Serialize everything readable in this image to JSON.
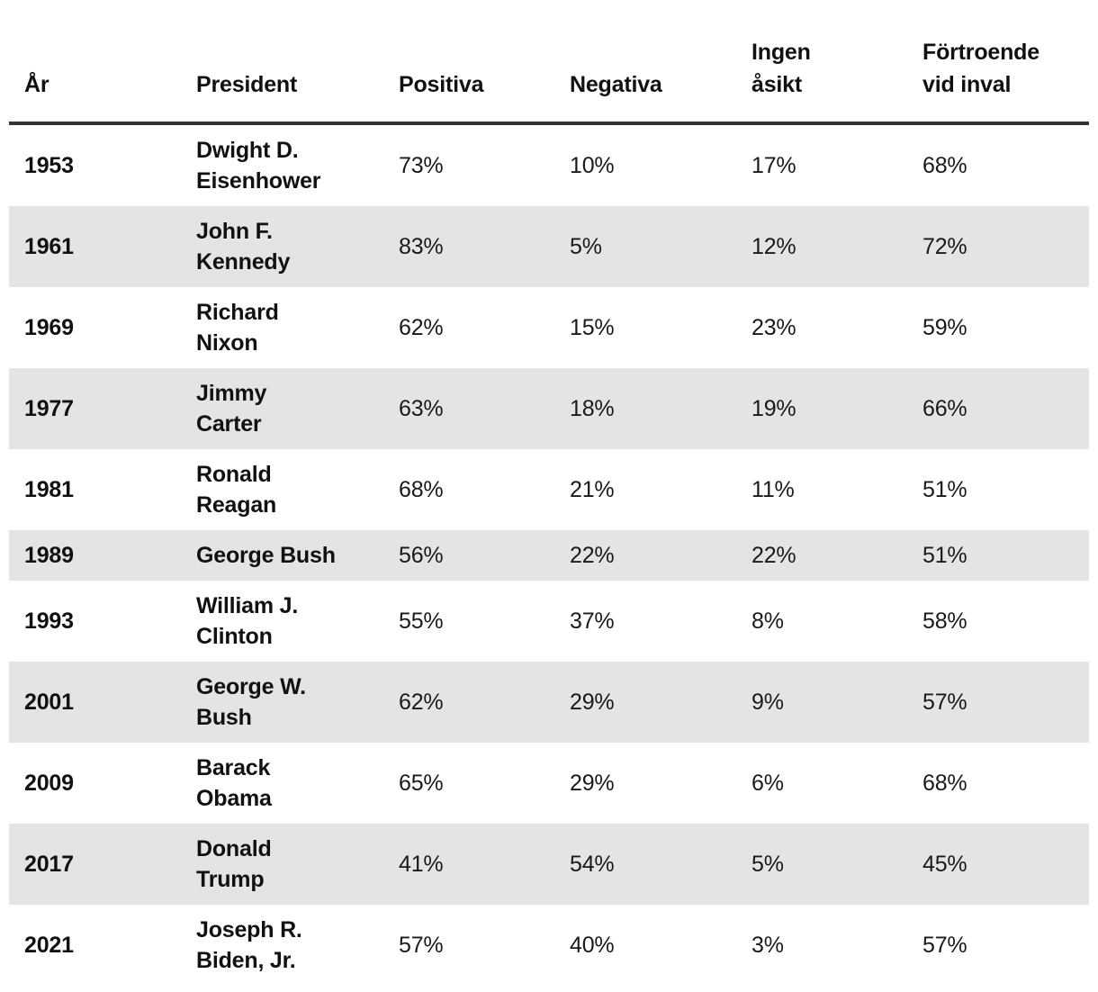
{
  "chart_data": {
    "type": "table",
    "title": "",
    "columns": [
      "År",
      "President",
      "Positiva",
      "Negativa",
      "Ingen åsikt",
      "Förtroende vid inval"
    ],
    "header_display": {
      "year": "År",
      "president": "President",
      "positive": "Positiva",
      "negative": "Negativa",
      "no_opinion": "Ingen\nåsikt",
      "trust": "Förtroende\nvid inval"
    },
    "rows": [
      {
        "year": "1953",
        "president": "Dwight D.\nEisenhower",
        "positive": "73%",
        "negative": "10%",
        "no_opinion": "17%",
        "trust": "68%"
      },
      {
        "year": "1961",
        "president": "John F.\nKennedy",
        "positive": "83%",
        "negative": "5%",
        "no_opinion": "12%",
        "trust": "72%"
      },
      {
        "year": "1969",
        "president": "Richard\nNixon",
        "positive": "62%",
        "negative": "15%",
        "no_opinion": "23%",
        "trust": "59%"
      },
      {
        "year": "1977",
        "president": "Jimmy\nCarter",
        "positive": "63%",
        "negative": "18%",
        "no_opinion": "19%",
        "trust": "66%"
      },
      {
        "year": "1981",
        "president": "Ronald\nReagan",
        "positive": "68%",
        "negative": "21%",
        "no_opinion": "11%",
        "trust": "51%"
      },
      {
        "year": "1989",
        "president": "George Bush",
        "positive": "56%",
        "negative": "22%",
        "no_opinion": "22%",
        "trust": "51%"
      },
      {
        "year": "1993",
        "president": "William J.\nClinton",
        "positive": "55%",
        "negative": "37%",
        "no_opinion": "8%",
        "trust": "58%"
      },
      {
        "year": "2001",
        "president": "George W.\nBush",
        "positive": "62%",
        "negative": "29%",
        "no_opinion": "9%",
        "trust": "57%"
      },
      {
        "year": "2009",
        "president": "Barack\nObama",
        "positive": "65%",
        "negative": "29%",
        "no_opinion": "6%",
        "trust": "68%"
      },
      {
        "year": "2017",
        "president": "Donald\nTrump",
        "positive": "41%",
        "negative": "54%",
        "no_opinion": "5%",
        "trust": "45%"
      },
      {
        "year": "2021",
        "president": "Joseph R.\nBiden, Jr.",
        "positive": "57%",
        "negative": "40%",
        "no_opinion": "3%",
        "trust": "57%"
      }
    ],
    "layout": {
      "striped": true,
      "stripe_pattern": "alternating-rows-shaded-starting-second",
      "header_rule": true,
      "grid": false
    },
    "colors": {
      "stripe_background": "#e5e4e2",
      "header_rule": "#333333",
      "text": "#111111",
      "page_background": "#ffffff"
    }
  }
}
